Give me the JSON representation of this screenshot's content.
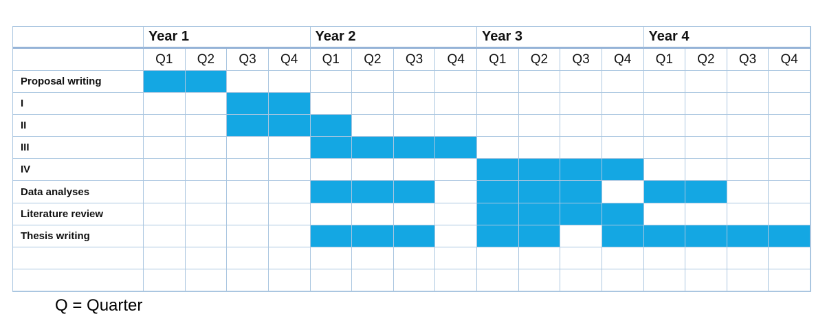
{
  "colors": {
    "bar_fill": "#14a7e3",
    "grid_line": "#aac6e0",
    "header_rule": "#95b3d7"
  },
  "chart_data": {
    "type": "gantt",
    "title": "",
    "year_headers": [
      "Year 1",
      "Year 2",
      "Year 3",
      "Year 4"
    ],
    "quarter_labels": [
      "Q1",
      "Q2",
      "Q3",
      "Q4"
    ],
    "total_quarter_columns": 16,
    "rows": [
      {
        "label": "Proposal writing",
        "filled_quarters": [
          1,
          2
        ]
      },
      {
        "label": "I",
        "filled_quarters": [
          3,
          4
        ]
      },
      {
        "label": "II",
        "filled_quarters": [
          3,
          4,
          5
        ]
      },
      {
        "label": "III",
        "filled_quarters": [
          5,
          6,
          7,
          8
        ]
      },
      {
        "label": "IV",
        "filled_quarters": [
          9,
          10,
          11,
          12
        ]
      },
      {
        "label": "Data analyses",
        "filled_quarters": [
          5,
          6,
          7,
          9,
          10,
          11,
          13,
          14
        ]
      },
      {
        "label": "Literature review",
        "filled_quarters": [
          9,
          10,
          11,
          12
        ]
      },
      {
        "label": "Thesis writing",
        "filled_quarters": [
          5,
          6,
          7,
          9,
          10,
          12,
          13,
          14,
          15,
          16
        ]
      },
      {
        "label": "",
        "filled_quarters": []
      },
      {
        "label": "",
        "filled_quarters": []
      }
    ],
    "footnote": "Q = Quarter"
  }
}
